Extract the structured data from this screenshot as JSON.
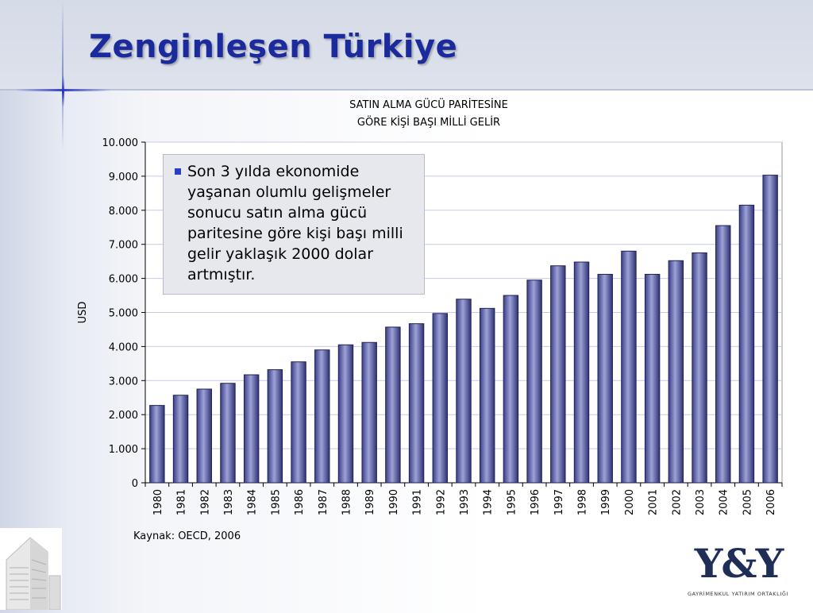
{
  "slide": {
    "title": "Zenginleşen Türkiye",
    "callout_text": "Son 3 yılda ekonomide yaşanan olumlu gelişmeler sonucu satın alma gücü paritesine göre kişi başı milli gelir yaklaşık 2000 dolar artmıştır.",
    "source": "Kaynak: OECD, 2006",
    "logo_mark": "Y&Y",
    "logo_subtitle": "GAYRİMENKUL YATIRIM ORTAKLIĞI",
    "colors": {
      "title": "#1b2a9c",
      "bar": "#6a6fb4",
      "bar_dark": "#2a2d6e",
      "bullet": "#2c3bc4"
    }
  },
  "chart_data": {
    "type": "bar",
    "title_lines": [
      "SATIN ALMA GÜCÜ PARİTESİNE",
      "GÖRE KİŞİ BAŞI MİLLİ GELİR"
    ],
    "ylabel": "USD",
    "xlabel": "",
    "ylim": [
      0,
      10000
    ],
    "yticks": [
      0,
      1000,
      2000,
      3000,
      4000,
      5000,
      6000,
      7000,
      8000,
      9000,
      10000
    ],
    "ytick_labels": [
      "0",
      "1.000",
      "2.000",
      "3.000",
      "4.000",
      "5.000",
      "6.000",
      "7.000",
      "8.000",
      "9.000",
      "10.000"
    ],
    "grid": true,
    "legend": "none",
    "categories": [
      "1980",
      "1981",
      "1982",
      "1983",
      "1984",
      "1985",
      "1986",
      "1987",
      "1988",
      "1989",
      "1990",
      "1991",
      "1992",
      "1993",
      "1994",
      "1995",
      "1996",
      "1997",
      "1998",
      "1999",
      "2000",
      "2001",
      "2002",
      "2003",
      "2004",
      "2005",
      "2006"
    ],
    "values": [
      2270,
      2570,
      2750,
      2920,
      3170,
      3320,
      3550,
      3900,
      4050,
      4120,
      4570,
      4670,
      4970,
      5390,
      5120,
      5500,
      5950,
      6370,
      6480,
      6120,
      6800,
      6120,
      6520,
      6750,
      7550,
      8150,
      9030
    ]
  }
}
